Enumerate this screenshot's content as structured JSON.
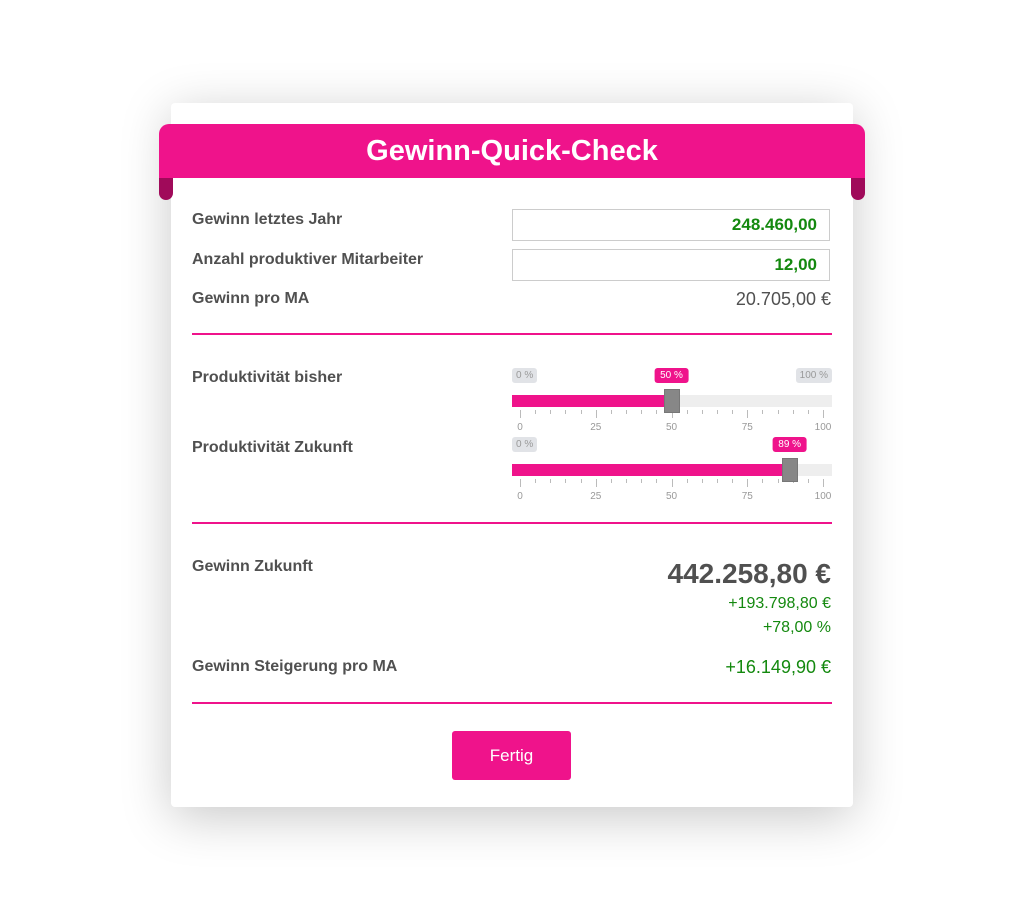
{
  "title": "Gewinn-Quick-Check",
  "accent": "#ef138b",
  "rows": {
    "gewinn_label": "Gewinn letztes Jahr",
    "gewinn_value": "248.460,00",
    "ma_label": "Anzahl produktiver Mitarbeiter",
    "ma_value": "12,00",
    "pro_ma_label": "Gewinn pro MA",
    "pro_ma_value": "20.705,00 €"
  },
  "sliders": [
    {
      "label": "Produktivität bisher",
      "value": 50,
      "bubble": "50 %",
      "min_label": "0 %",
      "max_label": "100 %",
      "ticks": [
        "0",
        "25",
        "50",
        "75",
        "100"
      ]
    },
    {
      "label": "Produktivität Zukunft",
      "value": 89,
      "bubble": "89 %",
      "min_label": "0 %",
      "ticks": [
        "0",
        "25",
        "50",
        "75",
        "100"
      ]
    }
  ],
  "result": {
    "zukunft_label": "Gewinn Zukunft",
    "zukunft_value": "442.258,80 €",
    "delta_abs": "+193.798,80 €",
    "delta_pct": "+78,00 %",
    "steig_label": "Gewinn Steigerung pro MA",
    "steig_value": "+16.149,90 €"
  },
  "done_label": "Fertig"
}
